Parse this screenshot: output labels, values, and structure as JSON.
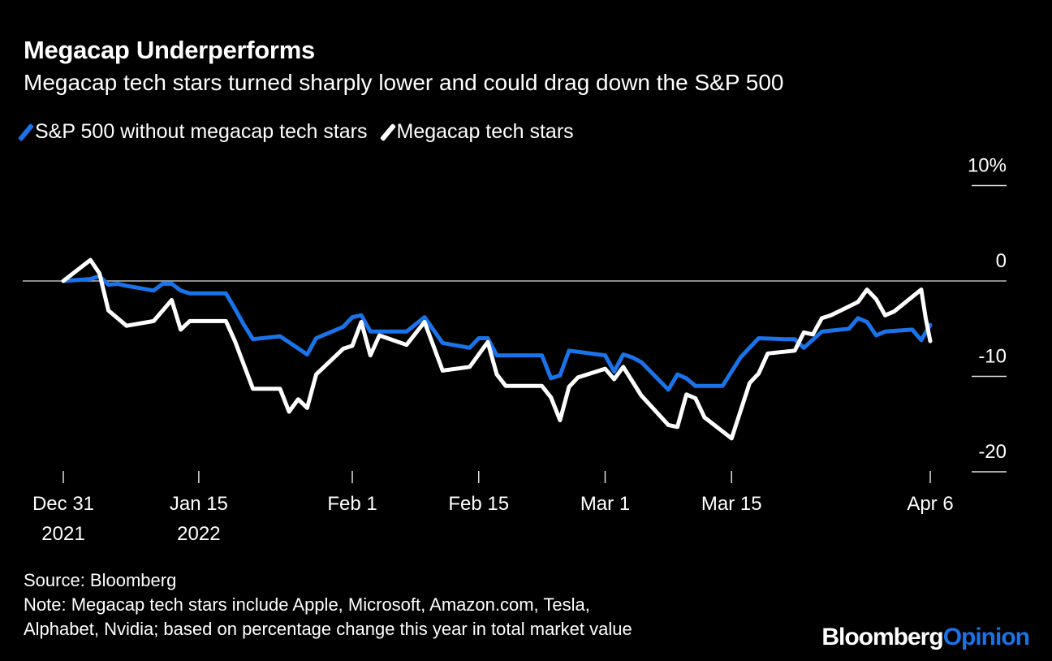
{
  "title": "Megacap Underperforms",
  "subtitle": "Megacap tech stars turned sharply lower and could drag down the S&P 500",
  "footer": {
    "source": "Source: Bloomberg",
    "note_line1": "Note: Megacap tech stars include Apple, Microsoft, Amazon.com, Tesla,",
    "note_line2": "Alphabet, Nvidia; based on percentage change this year in total market value"
  },
  "logo": {
    "part1": "Bloomberg",
    "part2": "Opinion",
    "part2_color": "#1a73e8"
  },
  "chart_data": {
    "type": "line",
    "grid": false,
    "legend_position": "top-left",
    "ylim": [
      -20,
      10
    ],
    "yticks": [
      {
        "value": 10,
        "label": "10%"
      },
      {
        "value": 0,
        "label": "0"
      },
      {
        "value": -10,
        "label": "-10"
      },
      {
        "value": -20,
        "label": "-20"
      }
    ],
    "xlim": [
      "2021-12-31",
      "2022-04-06"
    ],
    "xticks": [
      {
        "date": "2021-12-31",
        "label1": "Dec 31",
        "label2": "2021"
      },
      {
        "date": "2022-01-15",
        "label1": "Jan 15",
        "label2": "2022"
      },
      {
        "date": "2022-02-01",
        "label1": "Feb 1",
        "label2": ""
      },
      {
        "date": "2022-02-15",
        "label1": "Feb 15",
        "label2": ""
      },
      {
        "date": "2022-03-01",
        "label1": "Mar 1",
        "label2": ""
      },
      {
        "date": "2022-03-15",
        "label1": "Mar 15",
        "label2": ""
      },
      {
        "date": "2022-04-06",
        "label1": "Apr 6",
        "label2": ""
      }
    ],
    "series": [
      {
        "name": "S&P 500 without megacap tech stars",
        "color": "#1a73e8",
        "points": [
          [
            "2021-12-31",
            0
          ],
          [
            "2022-01-03",
            0.2
          ],
          [
            "2022-01-04",
            0.5
          ],
          [
            "2022-01-05",
            -0.4
          ],
          [
            "2022-01-06",
            -0.3
          ],
          [
            "2022-01-07",
            -0.5
          ],
          [
            "2022-01-10",
            -1.0
          ],
          [
            "2022-01-11",
            -0.3
          ],
          [
            "2022-01-12",
            -0.3
          ],
          [
            "2022-01-13",
            -1.0
          ],
          [
            "2022-01-14",
            -1.3
          ],
          [
            "2022-01-18",
            -1.3
          ],
          [
            "2022-01-19",
            -2.9
          ],
          [
            "2022-01-20",
            -4.6
          ],
          [
            "2022-01-21",
            -6.1
          ],
          [
            "2022-01-24",
            -5.8
          ],
          [
            "2022-01-27",
            -7.7
          ],
          [
            "2022-01-28",
            -6.0
          ],
          [
            "2022-01-31",
            -4.8
          ],
          [
            "2022-02-01",
            -3.8
          ],
          [
            "2022-02-02",
            -3.6
          ],
          [
            "2022-02-03",
            -5.3
          ],
          [
            "2022-02-07",
            -5.3
          ],
          [
            "2022-02-09",
            -3.8
          ],
          [
            "2022-02-11",
            -6.5
          ],
          [
            "2022-02-14",
            -7.0
          ],
          [
            "2022-02-15",
            -6.0
          ],
          [
            "2022-02-16",
            -6.0
          ],
          [
            "2022-02-17",
            -7.8
          ],
          [
            "2022-02-22",
            -7.8
          ],
          [
            "2022-02-23",
            -10.2
          ],
          [
            "2022-02-24",
            -9.9
          ],
          [
            "2022-02-25",
            -7.3
          ],
          [
            "2022-03-01",
            -7.8
          ],
          [
            "2022-03-02",
            -9.5
          ],
          [
            "2022-03-03",
            -7.7
          ],
          [
            "2022-03-04",
            -8.0
          ],
          [
            "2022-03-05",
            -8.5
          ],
          [
            "2022-03-08",
            -11.4
          ],
          [
            "2022-03-09",
            -9.8
          ],
          [
            "2022-03-10",
            -10.2
          ],
          [
            "2022-03-11",
            -11.0
          ],
          [
            "2022-03-14",
            -11.0
          ],
          [
            "2022-03-16",
            -8.0
          ],
          [
            "2022-03-18",
            -6.0
          ],
          [
            "2022-03-21",
            -6.1
          ],
          [
            "2022-03-22",
            -6.1
          ],
          [
            "2022-03-23",
            -7.0
          ],
          [
            "2022-03-25",
            -5.3
          ],
          [
            "2022-03-28",
            -5.0
          ],
          [
            "2022-03-29",
            -3.9
          ],
          [
            "2022-03-30",
            -4.3
          ],
          [
            "2022-03-31",
            -5.7
          ],
          [
            "2022-04-01",
            -5.3
          ],
          [
            "2022-04-04",
            -5.1
          ],
          [
            "2022-04-05",
            -6.2
          ],
          [
            "2022-04-06",
            -4.6
          ]
        ]
      },
      {
        "name": "Megacap tech stars",
        "color": "#ffffff",
        "points": [
          [
            "2021-12-31",
            0
          ],
          [
            "2022-01-03",
            2.2
          ],
          [
            "2022-01-04",
            0.8
          ],
          [
            "2022-01-05",
            -3.1
          ],
          [
            "2022-01-07",
            -4.7
          ],
          [
            "2022-01-10",
            -4.2
          ],
          [
            "2022-01-12",
            -2.0
          ],
          [
            "2022-01-13",
            -5.1
          ],
          [
            "2022-01-14",
            -4.2
          ],
          [
            "2022-01-18",
            -4.2
          ],
          [
            "2022-01-19",
            -6.3
          ],
          [
            "2022-01-20",
            -8.8
          ],
          [
            "2022-01-21",
            -11.3
          ],
          [
            "2022-01-24",
            -11.3
          ],
          [
            "2022-01-25",
            -13.7
          ],
          [
            "2022-01-26",
            -12.4
          ],
          [
            "2022-01-27",
            -13.3
          ],
          [
            "2022-01-28",
            -9.8
          ],
          [
            "2022-01-31",
            -7.1
          ],
          [
            "2022-02-01",
            -6.8
          ],
          [
            "2022-02-02",
            -4.3
          ],
          [
            "2022-02-03",
            -7.8
          ],
          [
            "2022-02-04",
            -5.7
          ],
          [
            "2022-02-07",
            -6.7
          ],
          [
            "2022-02-09",
            -4.3
          ],
          [
            "2022-02-11",
            -9.4
          ],
          [
            "2022-02-14",
            -9.0
          ],
          [
            "2022-02-16",
            -6.4
          ],
          [
            "2022-02-17",
            -9.8
          ],
          [
            "2022-02-18",
            -11.0
          ],
          [
            "2022-02-22",
            -11.0
          ],
          [
            "2022-02-23",
            -12.2
          ],
          [
            "2022-02-24",
            -14.6
          ],
          [
            "2022-02-25",
            -11.1
          ],
          [
            "2022-02-26",
            -10.1
          ],
          [
            "2022-03-01",
            -9.2
          ],
          [
            "2022-03-02",
            -10.3
          ],
          [
            "2022-03-03",
            -9.0
          ],
          [
            "2022-03-05",
            -12.0
          ],
          [
            "2022-03-08",
            -15.1
          ],
          [
            "2022-03-09",
            -15.3
          ],
          [
            "2022-03-10",
            -11.9
          ],
          [
            "2022-03-11",
            -12.3
          ],
          [
            "2022-03-12",
            -14.3
          ],
          [
            "2022-03-15",
            -16.5
          ],
          [
            "2022-03-17",
            -10.7
          ],
          [
            "2022-03-18",
            -9.7
          ],
          [
            "2022-03-19",
            -7.6
          ],
          [
            "2022-03-22",
            -7.3
          ],
          [
            "2022-03-23",
            -5.4
          ],
          [
            "2022-03-24",
            -5.6
          ],
          [
            "2022-03-25",
            -3.9
          ],
          [
            "2022-03-26",
            -3.6
          ],
          [
            "2022-03-29",
            -2.2
          ],
          [
            "2022-03-30",
            -0.9
          ],
          [
            "2022-03-31",
            -1.9
          ],
          [
            "2022-04-01",
            -3.6
          ],
          [
            "2022-04-02",
            -3.2
          ],
          [
            "2022-04-05",
            -0.9
          ],
          [
            "2022-04-05T12:00",
            -3.9
          ],
          [
            "2022-04-06",
            -6.3
          ]
        ]
      }
    ]
  }
}
